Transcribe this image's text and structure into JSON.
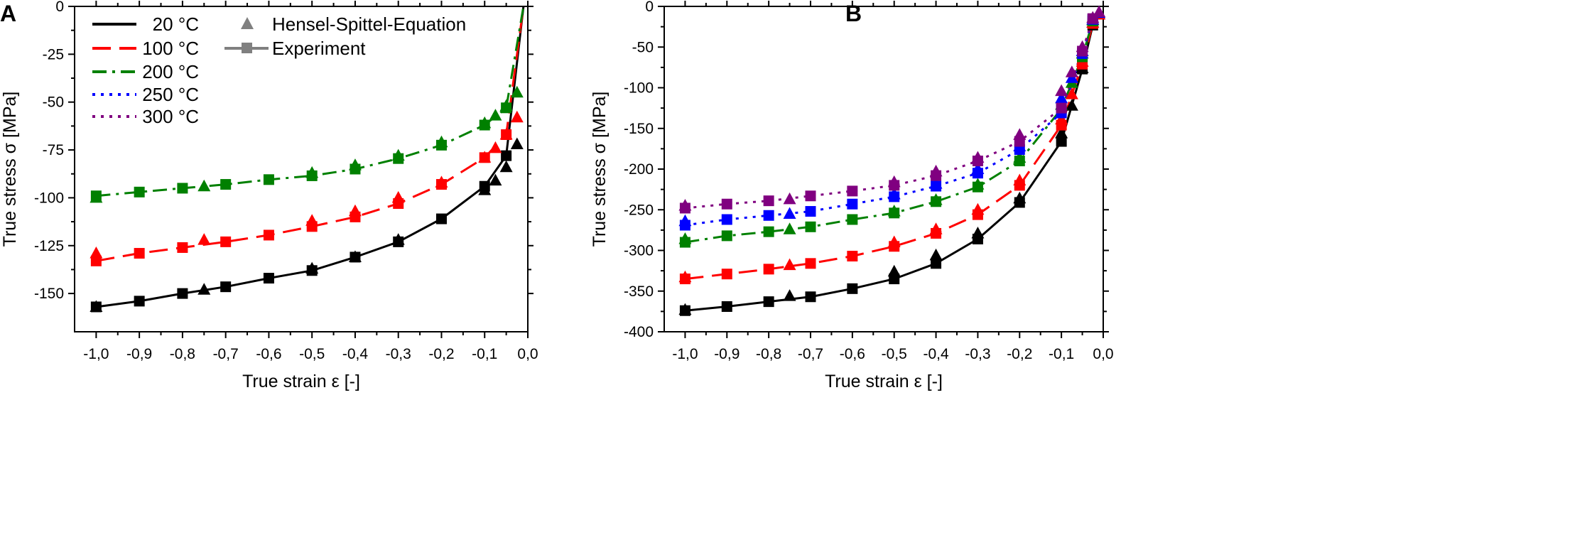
{
  "chart_data": [
    {
      "type": "line",
      "panel_label": "A",
      "xlabel": "True strain ε [-]",
      "ylabel": "True stress σ [MPa]",
      "xlim": [
        -1.05,
        0.0
      ],
      "ylim": [
        -170,
        0
      ],
      "x_ticks": [
        -1.0,
        -0.9,
        -0.8,
        -0.7,
        -0.6,
        -0.5,
        -0.4,
        -0.3,
        -0.2,
        -0.1,
        0.0
      ],
      "x_tick_labels": [
        "-1,0",
        "-0,9",
        "-0,8",
        "-0,7",
        "-0,6",
        "-0,5",
        "-0,4",
        "-0,3",
        "-0,2",
        "-0,1",
        "0,0"
      ],
      "y_ticks": [
        0,
        -25,
        -50,
        -75,
        -100,
        -125,
        -150
      ],
      "y_tick_labels": [
        "0",
        "-25",
        "-50",
        "-75",
        "-100",
        "-125",
        "-150"
      ],
      "legend": {
        "temperatures": [
          "20 °C",
          "100 °C",
          "200 °C",
          "250 °C",
          "300 °C"
        ],
        "marker_entries": [
          "Hensel-Spittel-Equation",
          "Experiment"
        ]
      },
      "series": [
        {
          "name": "20 °C",
          "color": "#000000",
          "dash": "solid",
          "model": {
            "x": [
              -1.0,
              -0.75,
              -0.5,
              -0.4,
              -0.3,
              -0.1,
              -0.075,
              -0.05,
              -0.025
            ],
            "y": [
              -157,
              -148,
              -137,
              -131,
              -122,
              -96,
              -91,
              -84,
              -72
            ]
          },
          "experiment": {
            "x": [
              -1.0,
              -0.9,
              -0.8,
              -0.7,
              -0.6,
              -0.5,
              -0.4,
              -0.3,
              -0.2,
              -0.1,
              -0.05,
              -0.01
            ],
            "y": [
              -157,
              -154,
              -150,
              -146.5,
              -142,
              -138,
              -131,
              -123,
              -111,
              -94,
              -78,
              0
            ]
          }
        },
        {
          "name": "100 °C",
          "color": "#ff0000",
          "dash": "dashed",
          "model": {
            "x": [
              -1.0,
              -0.75,
              -0.5,
              -0.4,
              -0.3,
              -0.2,
              -0.1,
              -0.075,
              -0.05,
              -0.025
            ],
            "y": [
              -129,
              -122,
              -112,
              -107,
              -100,
              -92,
              -79,
              -74,
              -67,
              -58
            ]
          },
          "experiment": {
            "x": [
              -1.0,
              -0.9,
              -0.8,
              -0.7,
              -0.6,
              -0.5,
              -0.4,
              -0.3,
              -0.2,
              -0.1,
              -0.05,
              -0.01
            ],
            "y": [
              -133,
              -129,
              -126,
              -123,
              -119.5,
              -115,
              -110,
              -103,
              -93,
              -79,
              -67,
              0
            ]
          }
        },
        {
          "name": "200 °C",
          "color": "#008000",
          "dash": "dashdot",
          "model": {
            "x": [
              -1.0,
              -0.75,
              -0.5,
              -0.4,
              -0.3,
              -0.2,
              -0.1,
              -0.075,
              -0.05,
              -0.025
            ],
            "y": [
              -100,
              -94,
              -87,
              -83,
              -78,
              -71,
              -61,
              -57,
              -52,
              -45
            ]
          },
          "experiment": {
            "x": [
              -1.0,
              -0.9,
              -0.8,
              -0.7,
              -0.6,
              -0.5,
              -0.4,
              -0.3,
              -0.2,
              -0.1,
              -0.05,
              -0.01
            ],
            "y": [
              -99,
              -97,
              -95,
              -93,
              -90.5,
              -88.5,
              -85,
              -79.5,
              -72.5,
              -62,
              -53,
              0
            ]
          }
        }
      ]
    },
    {
      "type": "line",
      "panel_label": "B",
      "xlabel": "True strain ε [-]",
      "ylabel": "True stress σ [MPa]",
      "xlim": [
        -1.05,
        0.0
      ],
      "ylim": [
        -400,
        0
      ],
      "x_ticks": [
        -1.0,
        -0.9,
        -0.8,
        -0.7,
        -0.6,
        -0.5,
        -0.4,
        -0.3,
        -0.2,
        -0.1,
        0.0
      ],
      "x_tick_labels": [
        "-1,0",
        "-0,9",
        "-0,8",
        "-0,7",
        "-0,6",
        "-0,5",
        "-0,4",
        "-0,3",
        "-0,2",
        "-0,1",
        "0,0"
      ],
      "y_ticks": [
        0,
        -50,
        -100,
        -150,
        -200,
        -250,
        -300,
        -350,
        -400
      ],
      "y_tick_labels": [
        "0",
        "-50",
        "-100",
        "-150",
        "-200",
        "-250",
        "-300",
        "-350",
        "-400"
      ],
      "series": [
        {
          "name": "20 °C",
          "color": "#000000",
          "dash": "solid",
          "model": {
            "x": [
              -1.0,
              -0.75,
              -0.5,
              -0.4,
              -0.3,
              -0.2,
              -0.1,
              -0.075,
              -0.05,
              -0.025,
              -0.01
            ],
            "y": [
              -373,
              -356,
              -326,
              -306,
              -279,
              -236,
              -156,
              -122,
              -76,
              -20,
              -10
            ]
          },
          "experiment": {
            "x": [
              -1.0,
              -0.9,
              -0.8,
              -0.7,
              -0.6,
              -0.5,
              -0.4,
              -0.3,
              -0.2,
              -0.1,
              -0.05,
              -0.025,
              -0.01
            ],
            "y": [
              -374,
              -369,
              -363,
              -357,
              -347,
              -335,
              -316,
              -286,
              -241,
              -166,
              -77,
              -23,
              -10
            ]
          }
        },
        {
          "name": "100 °C",
          "color": "#ff0000",
          "dash": "dashed",
          "model": {
            "x": [
              -1.0,
              -0.75,
              -0.5,
              -0.4,
              -0.3,
              -0.2,
              -0.1,
              -0.075,
              -0.05,
              -0.025,
              -0.01
            ],
            "y": [
              -333,
              -318,
              -290,
              -274,
              -250,
              -214,
              -139,
              -108,
              -68,
              -20,
              -10
            ]
          },
          "experiment": {
            "x": [
              -1.0,
              -0.9,
              -0.8,
              -0.7,
              -0.6,
              -0.5,
              -0.4,
              -0.3,
              -0.2,
              -0.1,
              -0.05,
              -0.025,
              -0.01
            ],
            "y": [
              -335,
              -329,
              -323,
              -316,
              -307,
              -295,
              -279,
              -256,
              -220,
              -146,
              -71,
              -21,
              -10
            ]
          }
        },
        {
          "name": "200 °C",
          "color": "#008000",
          "dash": "dashdot",
          "model": {
            "x": [
              -1.0,
              -0.75,
              -0.5,
              -0.4,
              -0.3,
              -0.2,
              -0.1,
              -0.075,
              -0.05,
              -0.025,
              -0.01
            ],
            "y": [
              -286,
              -274,
              -252,
              -238,
              -219,
              -186,
              -121,
              -94,
              -58,
              -17,
              -8
            ]
          },
          "experiment": {
            "x": [
              -1.0,
              -0.9,
              -0.8,
              -0.7,
              -0.6,
              -0.5,
              -0.4,
              -0.3,
              -0.2,
              -0.1,
              -0.05,
              -0.025,
              -0.01
            ],
            "y": [
              -290,
              -282,
              -277,
              -271,
              -262,
              -254,
              -240,
              -222,
              -190,
              -126,
              -62,
              -18,
              -8
            ]
          }
        },
        {
          "name": "250 °C",
          "color": "#0000ff",
          "dash": "dotted",
          "model": {
            "x": [
              -1.0,
              -0.75,
              -0.5,
              -0.4,
              -0.3,
              -0.2,
              -0.1,
              -0.075,
              -0.05,
              -0.025,
              -0.01
            ],
            "y": [
              -264,
              -255,
              -231,
              -218,
              -200,
              -172,
              -113,
              -88,
              -55,
              -16,
              -8
            ]
          },
          "experiment": {
            "x": [
              -1.0,
              -0.9,
              -0.8,
              -0.7,
              -0.6,
              -0.5,
              -0.4,
              -0.3,
              -0.2,
              -0.1,
              -0.05,
              -0.025,
              -0.01
            ],
            "y": [
              -269,
              -262,
              -257,
              -252,
              -243,
              -234,
              -221,
              -205,
              -176,
              -131,
              -58,
              -16,
              -8
            ]
          }
        },
        {
          "name": "300 °C",
          "color": "#800080",
          "dash": "dotted",
          "model": {
            "x": [
              -1.0,
              -0.75,
              -0.5,
              -0.4,
              -0.3,
              -0.2,
              -0.1,
              -0.075,
              -0.05,
              -0.025,
              -0.01
            ],
            "y": [
              -245,
              -237,
              -216,
              -203,
              -186,
              -158,
              -104,
              -81,
              -50,
              -14,
              -7
            ]
          },
          "experiment": {
            "x": [
              -1.0,
              -0.9,
              -0.8,
              -0.7,
              -0.6,
              -0.5,
              -0.4,
              -0.3,
              -0.2,
              -0.1,
              -0.05,
              -0.025,
              -0.01
            ],
            "y": [
              -248,
              -243,
              -239,
              -233,
              -227,
              -220,
              -208,
              -190,
              -166,
              -125,
              -55,
              -15,
              -7
            ]
          }
        }
      ]
    }
  ]
}
